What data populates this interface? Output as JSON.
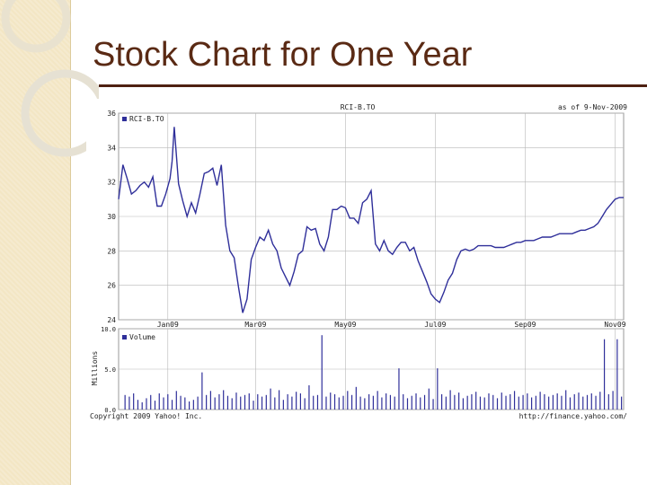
{
  "slide": {
    "title": "Stock Chart for One Year",
    "colors": {
      "title": "#5a2a14",
      "rule": "#4e2112",
      "band": "#f3e6c4",
      "series": "#2f2f9a"
    }
  },
  "chart_data": [
    {
      "type": "line",
      "title": "RCI-B.TO",
      "as_of": "as of  9-Nov-2009",
      "legend": "RCI-B.TO",
      "legend_position": "top-left",
      "grid": true,
      "ylim": [
        24,
        36
      ],
      "yticks": [
        24,
        26,
        28,
        30,
        32,
        34,
        36
      ],
      "ytick_labels": [
        "24",
        "26",
        "28",
        "30",
        "32",
        "34",
        "36"
      ],
      "xticks": [
        {
          "label": "Jan09",
          "x": 23
        },
        {
          "label": "Mar09",
          "x": 64
        },
        {
          "label": "May09",
          "x": 106
        },
        {
          "label": "Jul09",
          "x": 148
        },
        {
          "label": "Sep09",
          "x": 190
        },
        {
          "label": "Nov09",
          "x": 232
        }
      ],
      "xlim": [
        0,
        236
      ],
      "series": [
        {
          "name": "RCI-B.TO",
          "x": [
            0,
            2,
            4,
            6,
            8,
            10,
            12,
            14,
            16,
            18,
            20,
            22,
            24,
            25,
            26,
            28,
            30,
            32,
            34,
            36,
            38,
            40,
            42,
            44,
            46,
            48,
            50,
            52,
            54,
            56,
            58,
            60,
            62,
            64,
            66,
            68,
            70,
            72,
            74,
            76,
            78,
            80,
            82,
            84,
            86,
            88,
            90,
            92,
            94,
            96,
            98,
            100,
            102,
            104,
            106,
            108,
            110,
            112,
            114,
            116,
            118,
            120,
            122,
            124,
            126,
            128,
            130,
            132,
            134,
            136,
            138,
            140,
            142,
            144,
            146,
            148,
            150,
            152,
            154,
            156,
            158,
            160,
            162,
            164,
            166,
            168,
            170,
            172,
            174,
            176,
            178,
            180,
            182,
            184,
            186,
            188,
            190,
            192,
            194,
            196,
            198,
            200,
            202,
            204,
            206,
            208,
            210,
            212,
            214,
            216,
            218,
            220,
            222,
            224,
            226,
            228,
            230,
            232,
            234,
            236
          ],
          "y": [
            31.0,
            33.0,
            32.2,
            31.3,
            31.5,
            31.8,
            32.0,
            31.7,
            32.3,
            30.6,
            30.6,
            31.3,
            32.2,
            33.2,
            35.2,
            31.9,
            30.9,
            30.0,
            30.8,
            30.2,
            31.3,
            32.5,
            32.6,
            32.8,
            31.8,
            33.0,
            29.5,
            28.0,
            27.6,
            25.9,
            24.4,
            25.2,
            27.5,
            28.2,
            28.8,
            28.6,
            29.2,
            28.4,
            28.0,
            27.0,
            26.5,
            26.0,
            26.8,
            27.8,
            28.0,
            29.4,
            29.2,
            29.3,
            28.4,
            28.0,
            28.8,
            30.4,
            30.4,
            30.6,
            30.5,
            29.9,
            29.9,
            29.6,
            30.8,
            31.0,
            31.5,
            28.4,
            28.0,
            28.6,
            28.0,
            27.8,
            28.2,
            28.5,
            28.5,
            28.0,
            28.2,
            27.4,
            26.8,
            26.2,
            25.5,
            25.2,
            25.0,
            25.6,
            26.3,
            26.7,
            27.5,
            28.0,
            28.1,
            28.0,
            28.1,
            28.3,
            28.3,
            28.3,
            28.3,
            28.2,
            28.2,
            28.2,
            28.3,
            28.4,
            28.5,
            28.5,
            28.6,
            28.6,
            28.6,
            28.7,
            28.8,
            28.8,
            28.8,
            28.9,
            29.0,
            29.0,
            29.0,
            29.0,
            29.1,
            29.2,
            29.2,
            29.3,
            29.4,
            29.6,
            30.0,
            30.4,
            30.7,
            31.0,
            31.1,
            31.1
          ]
        }
      ]
    },
    {
      "type": "bar",
      "title": "Volume",
      "legend": "Volume",
      "legend_position": "top-left",
      "ylabel": "Millions",
      "ylim": [
        0,
        10
      ],
      "yticks": [
        0,
        5,
        10
      ],
      "ytick_labels": [
        "0.0",
        "5.0",
        "10.0"
      ],
      "series": [
        {
          "name": "Volume",
          "x": [
            3,
            5,
            7,
            9,
            11,
            13,
            15,
            17,
            19,
            21,
            23,
            25,
            27,
            29,
            31,
            33,
            35,
            37,
            39,
            41,
            43,
            45,
            47,
            49,
            51,
            53,
            55,
            57,
            59,
            61,
            63,
            65,
            67,
            69,
            71,
            73,
            75,
            77,
            79,
            81,
            83,
            85,
            87,
            89,
            91,
            93,
            95,
            97,
            99,
            101,
            103,
            105,
            107,
            109,
            111,
            113,
            115,
            117,
            119,
            121,
            123,
            125,
            127,
            129,
            131,
            133,
            135,
            137,
            139,
            141,
            143,
            145,
            147,
            149,
            151,
            153,
            155,
            157,
            159,
            161,
            163,
            165,
            167,
            169,
            171,
            173,
            175,
            177,
            179,
            181,
            183,
            185,
            187,
            189,
            191,
            193,
            195,
            197,
            199,
            201,
            203,
            205,
            207,
            209,
            211,
            213,
            215,
            217,
            219,
            221,
            223,
            225,
            227,
            229,
            231,
            233,
            235
          ],
          "values": [
            1.8,
            1.6,
            2.0,
            1.2,
            0.9,
            1.4,
            1.8,
            1.1,
            2.0,
            1.5,
            1.9,
            1.2,
            2.3,
            1.7,
            1.5,
            1.0,
            1.2,
            1.6,
            4.6,
            1.8,
            2.3,
            1.5,
            1.9,
            2.4,
            1.7,
            1.4,
            2.1,
            1.6,
            1.8,
            2.0,
            1.1,
            1.9,
            1.6,
            1.8,
            2.6,
            1.5,
            2.4,
            1.2,
            1.9,
            1.6,
            2.2,
            2.0,
            1.4,
            3.0,
            1.7,
            1.8,
            9.2,
            1.6,
            2.1,
            1.9,
            1.5,
            1.7,
            2.3,
            1.8,
            2.8,
            1.6,
            1.4,
            1.9,
            1.7,
            2.3,
            1.5,
            2.0,
            1.8,
            1.6,
            5.1,
            1.9,
            1.4,
            1.7,
            2.0,
            1.5,
            1.8,
            2.6,
            1.3,
            5.1,
            1.9,
            1.6,
            2.4,
            1.8,
            2.1,
            1.4,
            1.7,
            1.9,
            2.2,
            1.6,
            1.5,
            2.0,
            1.8,
            1.4,
            2.1,
            1.7,
            1.9,
            2.3,
            1.6,
            1.8,
            2.0,
            1.5,
            1.7,
            2.2,
            1.9,
            1.6,
            1.8,
            2.0,
            1.7,
            2.4,
            1.5,
            1.9,
            2.1,
            1.6,
            1.8,
            2.0,
            1.7,
            2.2,
            8.7,
            1.9,
            2.3,
            8.7,
            1.6
          ]
        }
      ]
    }
  ],
  "footer": {
    "copyright": "Copyright 2009 Yahoo! Inc.",
    "source": "http://finance.yahoo.com/"
  }
}
